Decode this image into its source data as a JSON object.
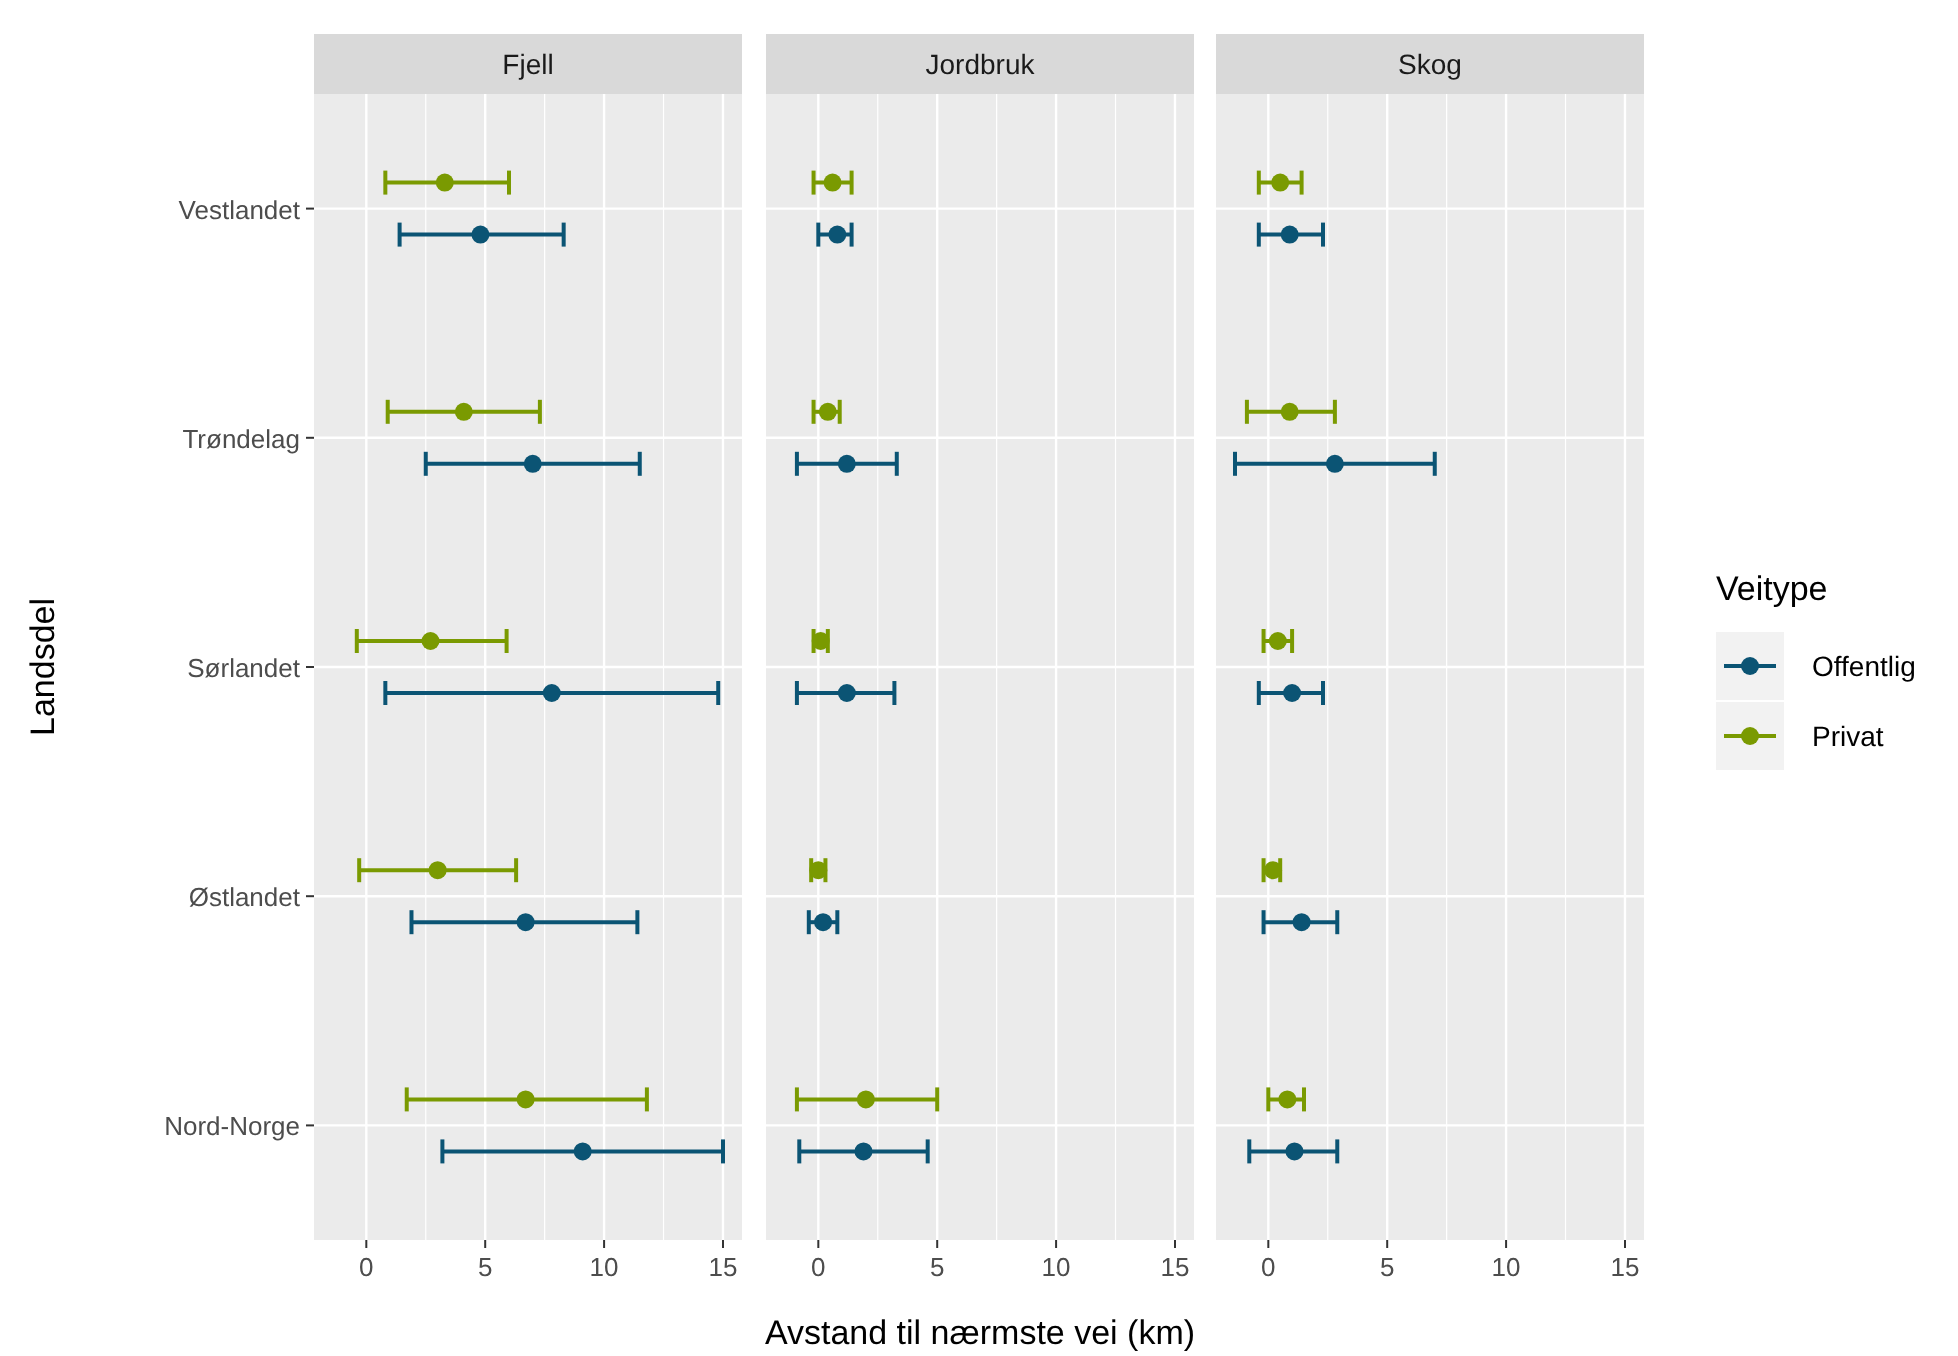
{
  "chart_data": [
    {
      "type": "scatter",
      "title": "Fjell",
      "orientation": "horizontal",
      "ylabel": "Landsdel",
      "categories": [
        "Vestlandet",
        "Trøndelag",
        "Sørlandet",
        "Østlandet",
        "Nord-Norge"
      ],
      "xlim": [
        -2.2,
        15.8
      ],
      "xticks": [
        0,
        5,
        10,
        15
      ],
      "grid": true,
      "marker": "circle",
      "legend": false,
      "series": [
        {
          "color": "#0b5474",
          "values": [
            4.8,
            7.0,
            7.8,
            6.7,
            9.1
          ],
          "errors": [
            [
              1.4,
              8.3
            ],
            [
              2.5,
              11.5
            ],
            [
              0.8,
              14.8
            ],
            [
              1.9,
              11.4
            ],
            [
              3.2,
              15.0
            ]
          ]
        },
        {
          "color": "#7a9a01",
          "values": [
            3.3,
            4.1,
            2.7,
            3.0,
            6.7
          ],
          "errors": [
            [
              0.8,
              6.0
            ],
            [
              0.9,
              7.3
            ],
            [
              -0.4,
              5.9
            ],
            [
              -0.3,
              6.3
            ],
            [
              1.7,
              11.8
            ]
          ]
        }
      ]
    },
    {
      "type": "scatter",
      "title": "Jordbruk",
      "orientation": "horizontal",
      "xlabel": "Avstand til nærmste vei (km)",
      "categories": [
        null,
        null,
        null,
        null,
        null
      ],
      "xlim": [
        -2.2,
        15.8
      ],
      "xticks": [
        0,
        5,
        10,
        15
      ],
      "grid": true,
      "marker": "circle",
      "legend": false,
      "tick_labels": "x",
      "series": [
        {
          "color": "#0b5474",
          "values": [
            0.8,
            1.2,
            1.2,
            0.2,
            1.9
          ],
          "errors": [
            [
              0,
              1.4
            ],
            [
              -0.9,
              3.3
            ],
            [
              -0.9,
              3.2
            ],
            [
              -0.4,
              0.8
            ],
            [
              -0.8,
              4.6
            ]
          ]
        },
        {
          "color": "#7a9a01",
          "values": [
            0.6,
            0.4,
            0.1,
            0.0,
            2.0
          ],
          "errors": [
            [
              -0.2,
              1.4
            ],
            [
              -0.2,
              0.9
            ],
            [
              -0.2,
              0.4
            ],
            [
              -0.3,
              0.3
            ],
            [
              -0.9,
              5.0
            ]
          ]
        }
      ]
    },
    {
      "type": "scatter",
      "title": "Skog",
      "orientation": "horizontal",
      "categories": [
        null,
        null,
        null,
        null,
        null
      ],
      "xlim": [
        -2.2,
        15.8
      ],
      "xticks": [
        0,
        5,
        10,
        15
      ],
      "grid": true,
      "marker": "circle",
      "legend": "right",
      "legend_title": "Veitype",
      "tick_labels": "x",
      "series": [
        {
          "name": "Offentlig",
          "color": "#0b5474",
          "values": [
            0.9,
            2.8,
            1.0,
            1.4,
            1.1
          ],
          "errors": [
            [
              -0.4,
              2.3
            ],
            [
              -1.4,
              7.0
            ],
            [
              -0.4,
              2.3
            ],
            [
              -0.2,
              2.9
            ],
            [
              -0.8,
              2.9
            ]
          ]
        },
        {
          "name": "Privat",
          "color": "#7a9a01",
          "values": [
            0.5,
            0.9,
            0.4,
            0.2,
            0.8
          ],
          "errors": [
            [
              -0.4,
              1.4
            ],
            [
              -0.9,
              2.8
            ],
            [
              -0.2,
              1.0
            ],
            [
              -0.2,
              0.5
            ],
            [
              0,
              1.5
            ]
          ]
        }
      ]
    }
  ]
}
